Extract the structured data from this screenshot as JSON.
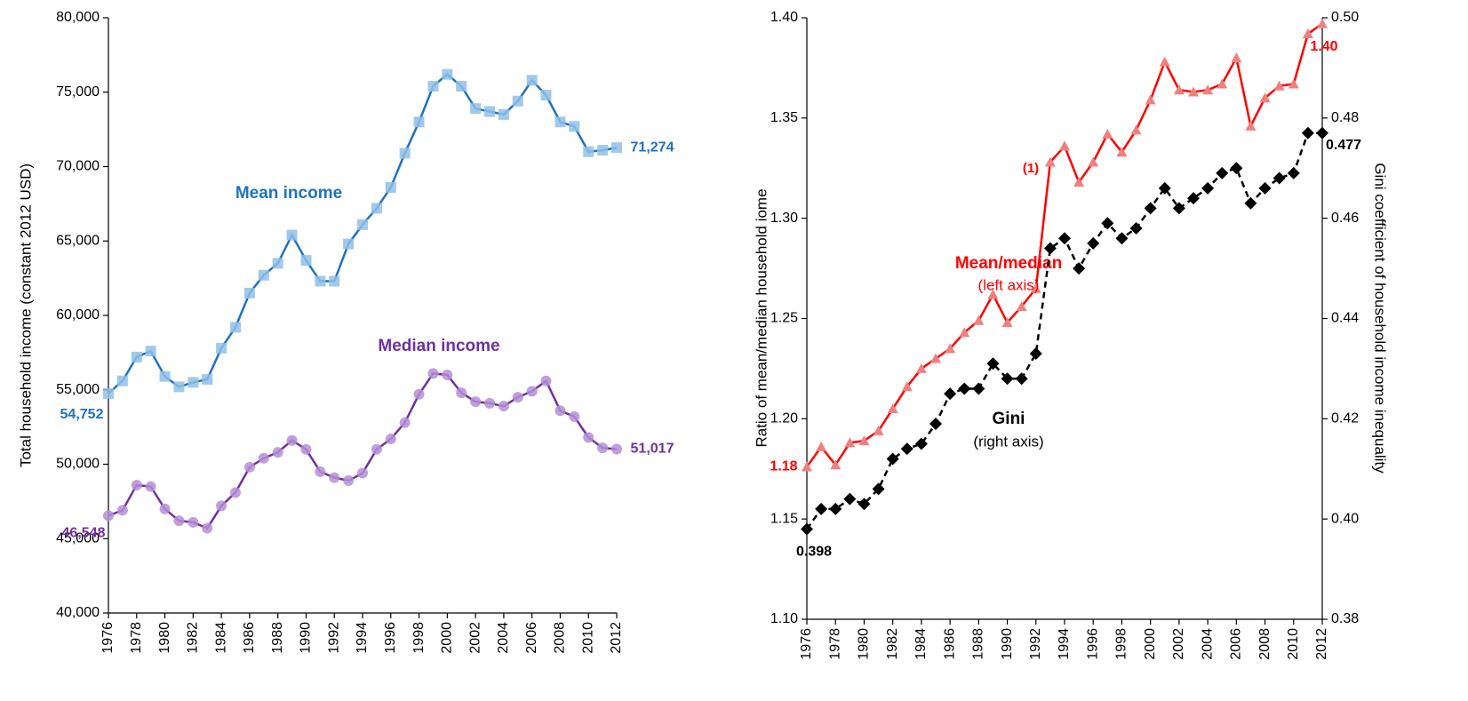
{
  "chart_data": [
    {
      "type": "line",
      "y_label": "Total household  income (constant 2012 USD)",
      "x": [
        1976,
        1977,
        1978,
        1979,
        1980,
        1981,
        1982,
        1983,
        1984,
        1985,
        1986,
        1987,
        1988,
        1989,
        1990,
        1991,
        1992,
        1993,
        1994,
        1995,
        1996,
        1997,
        1998,
        1999,
        2000,
        2001,
        2002,
        2003,
        2004,
        2005,
        2006,
        2007,
        2008,
        2009,
        2010,
        2011,
        2012
      ],
      "xlim": [
        1976,
        2012
      ],
      "xticks": [
        1976,
        1978,
        1980,
        1982,
        1984,
        1986,
        1988,
        1990,
        1992,
        1994,
        1996,
        1998,
        2000,
        2002,
        2004,
        2006,
        2008,
        2010,
        2012
      ],
      "ylim": [
        40000,
        80000
      ],
      "yticks": [
        {
          "value": 40000,
          "label": "40,000"
        },
        {
          "value": 45000,
          "label": "45,000"
        },
        {
          "value": 50000,
          "label": "50,000"
        },
        {
          "value": 55000,
          "label": "55,000"
        },
        {
          "value": 60000,
          "label": "60,000"
        },
        {
          "value": 65000,
          "label": "65,000"
        },
        {
          "value": 70000,
          "label": "70,000"
        },
        {
          "value": 75000,
          "label": "75,000"
        },
        {
          "value": 80000,
          "label": "80,000"
        }
      ],
      "series": [
        {
          "name": "Mean income",
          "color": "#1f72c0",
          "marker_color": "#8fbfe8",
          "marker": "square",
          "values": [
            54752,
            55600,
            57200,
            57600,
            55900,
            55200,
            55500,
            55700,
            57800,
            59200,
            61500,
            62700,
            63500,
            65400,
            63700,
            62300,
            62300,
            64800,
            66100,
            67200,
            68600,
            70900,
            73000,
            75400,
            76200,
            75400,
            73900,
            73700,
            73500,
            74400,
            75800,
            74800,
            73000,
            72700,
            71000,
            71100,
            71274
          ],
          "value_labels": [
            "54,752",
            null,
            null,
            null,
            null,
            null,
            null,
            null,
            null,
            null,
            null,
            null,
            null,
            null,
            null,
            null,
            null,
            null,
            null,
            null,
            null,
            null,
            null,
            null,
            null,
            null,
            null,
            null,
            null,
            null,
            null,
            null,
            null,
            null,
            null,
            null,
            "71,274"
          ]
        },
        {
          "name": "Median income",
          "color": "#7030a0",
          "marker_color": "#b48ed6",
          "marker": "circle",
          "values": [
            46548,
            46900,
            48600,
            48500,
            47000,
            46200,
            46100,
            45700,
            47200,
            48100,
            49800,
            50400,
            50800,
            51600,
            51000,
            49500,
            49100,
            48900,
            49400,
            51000,
            51700,
            52800,
            54700,
            56100,
            56000,
            54800,
            54200,
            54100,
            53900,
            54500,
            54900,
            55600,
            53600,
            53200,
            51800,
            51100,
            51017
          ],
          "value_labels": [
            "46,548",
            null,
            null,
            null,
            null,
            null,
            null,
            null,
            null,
            null,
            null,
            null,
            null,
            null,
            null,
            null,
            null,
            null,
            null,
            null,
            null,
            null,
            null,
            null,
            null,
            null,
            null,
            null,
            null,
            null,
            null,
            null,
            null,
            null,
            null,
            null,
            "51,017"
          ]
        }
      ]
    },
    {
      "type": "line",
      "y_label": "Ratio of mean/median  household  iome",
      "y2_label": "Gini coefficient  of household income inequality",
      "annotations": [
        "(1)"
      ],
      "x": [
        1976,
        1977,
        1978,
        1979,
        1980,
        1981,
        1982,
        1983,
        1984,
        1985,
        1986,
        1987,
        1988,
        1989,
        1990,
        1991,
        1992,
        1993,
        1994,
        1995,
        1996,
        1997,
        1998,
        1999,
        2000,
        2001,
        2002,
        2003,
        2004,
        2005,
        2006,
        2007,
        2008,
        2009,
        2010,
        2011,
        2012
      ],
      "xlim": [
        1976,
        2012
      ],
      "xticks": [
        1976,
        1978,
        1980,
        1982,
        1984,
        1986,
        1988,
        1990,
        1992,
        1994,
        1996,
        1998,
        2000,
        2002,
        2004,
        2006,
        2008,
        2010,
        2012
      ],
      "ylim": [
        1.1,
        1.4
      ],
      "yticks": [
        {
          "value": 1.1,
          "label": "1.10"
        },
        1.15,
        {
          "value": 1.2,
          "label": "1.20"
        },
        1.25,
        {
          "value": 1.3,
          "label": "1.30"
        },
        1.35,
        {
          "value": 1.4,
          "label": "1.40"
        }
      ],
      "y2lim": [
        0.38,
        0.5
      ],
      "y2ticks": [
        0.38,
        {
          "value": 0.4,
          "label": "0.40"
        },
        0.42,
        0.44,
        0.46,
        0.48,
        {
          "value": 0.5,
          "label": "0.50"
        }
      ],
      "series": [
        {
          "name": "Mean/median",
          "note": "(left axis)",
          "color": "#ff0000",
          "marker_color": "#f08080",
          "marker": "triangle",
          "values": [
            1.176,
            1.186,
            1.177,
            1.188,
            1.189,
            1.194,
            1.205,
            1.216,
            1.225,
            1.23,
            1.235,
            1.243,
            1.249,
            1.262,
            1.248,
            1.256,
            1.265,
            1.328,
            1.336,
            1.318,
            1.328,
            1.342,
            1.333,
            1.344,
            1.359,
            1.378,
            1.364,
            1.363,
            1.364,
            1.367,
            1.38,
            1.346,
            1.36,
            1.366,
            1.367,
            1.392,
            1.397
          ],
          "value_labels": [
            "1.18",
            null,
            null,
            null,
            null,
            null,
            null,
            null,
            null,
            null,
            null,
            null,
            null,
            null,
            null,
            null,
            null,
            null,
            null,
            null,
            null,
            null,
            null,
            null,
            null,
            null,
            null,
            null,
            null,
            null,
            null,
            null,
            null,
            null,
            null,
            null,
            "1.40"
          ]
        },
        {
          "name": "Gini",
          "note": "(right axis)",
          "axis": "y2",
          "color": "#000000",
          "marker_color": "#000000",
          "marker": "diamond",
          "dash": true,
          "values": [
            0.398,
            0.402,
            0.402,
            0.404,
            0.403,
            0.406,
            0.412,
            0.414,
            0.415,
            0.419,
            0.425,
            0.426,
            0.426,
            0.431,
            0.428,
            0.428,
            0.433,
            0.454,
            0.456,
            0.45,
            0.455,
            0.459,
            0.456,
            0.458,
            0.462,
            0.466,
            0.462,
            0.464,
            0.466,
            0.469,
            0.47,
            0.463,
            0.466,
            0.468,
            0.469,
            0.477,
            0.477
          ],
          "value_labels": [
            "0.398",
            null,
            null,
            null,
            null,
            null,
            null,
            null,
            null,
            null,
            null,
            null,
            null,
            null,
            null,
            null,
            null,
            null,
            null,
            null,
            null,
            null,
            null,
            null,
            null,
            null,
            null,
            null,
            null,
            null,
            null,
            null,
            null,
            null,
            null,
            null,
            "0.477"
          ]
        }
      ]
    }
  ]
}
